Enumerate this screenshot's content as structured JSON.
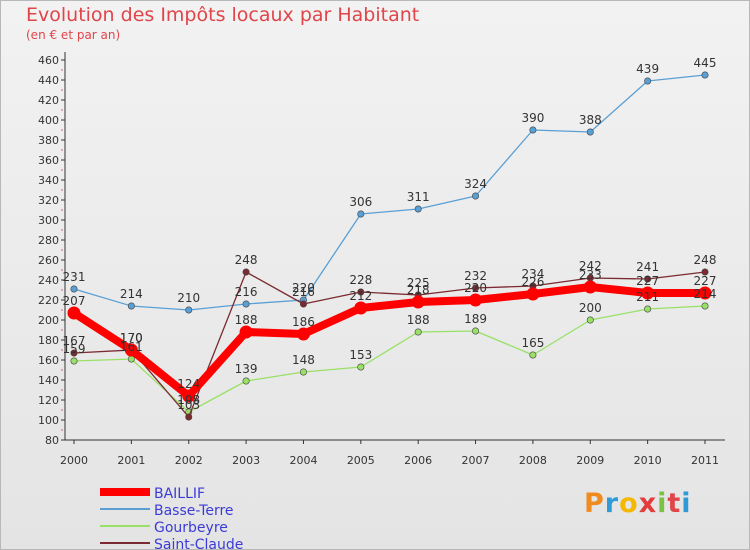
{
  "header": {
    "title": "Evolution des Impôts locaux par Habitant",
    "subtitle": "(en € et par an)"
  },
  "logo": {
    "letters": [
      "P",
      "r",
      "o",
      "x",
      "i",
      "t",
      "i"
    ]
  },
  "colors": {
    "BAILLIF": "#ff0000",
    "Basse-Terre": "#5a9fd4",
    "Gourbeyre": "#99e066",
    "Saint-Claude": "#7a2a30",
    "axis": "#333333",
    "legend_text": "#3b3bd9",
    "label_text": "#333333"
  },
  "chart_data": {
    "type": "line",
    "title": "Evolution des Impôts locaux par Habitant",
    "subtitle": "(en € et par an)",
    "xlabel": "",
    "ylabel": "",
    "ylim": [
      80,
      460
    ],
    "y_ticks": [
      80,
      100,
      120,
      140,
      160,
      180,
      200,
      220,
      240,
      260,
      280,
      300,
      320,
      340,
      360,
      380,
      400,
      420,
      440,
      460
    ],
    "grid": false,
    "legend_position": "bottom-left",
    "categories": [
      "2000",
      "2001",
      "2002",
      "2003",
      "2004",
      "2005",
      "2006",
      "2007",
      "2008",
      "2009",
      "2010",
      "2011"
    ],
    "series": [
      {
        "name": "Basse-Terre",
        "values": [
          231,
          214,
          210,
          216,
          220,
          306,
          311,
          324,
          390,
          388,
          439,
          445
        ],
        "labels": [
          "231",
          "214",
          "210",
          "216",
          "220",
          "306",
          "311",
          "324",
          "390",
          "388",
          "439",
          "445"
        ]
      },
      {
        "name": "Gourbeyre",
        "values": [
          159,
          161,
          108,
          139,
          148,
          153,
          188,
          189,
          165,
          200,
          211,
          214
        ],
        "labels": [
          "159",
          "161",
          "108",
          "139",
          "148",
          "153",
          "188",
          "189",
          "165",
          "200",
          "211",
          "214"
        ]
      },
      {
        "name": "Saint-Claude",
        "values": [
          167,
          170,
          103,
          248,
          216,
          228,
          225,
          232,
          234,
          242,
          241,
          248
        ],
        "labels": [
          "167",
          "170",
          "103",
          "248",
          "216",
          "228",
          "225",
          "232",
          "234",
          "242",
          "241",
          "248"
        ]
      },
      {
        "name": "BAILLIF",
        "values": [
          207,
          170,
          124,
          188,
          186,
          212,
          218,
          220,
          226,
          233,
          227,
          227
        ],
        "labels": [
          "207",
          "170",
          "124",
          "188",
          "186",
          "212",
          "218",
          "220",
          "226",
          "233",
          "227",
          "227"
        ]
      }
    ],
    "legend": [
      "BAILLIF",
      "Basse-Terre",
      "Gourbeyre",
      "Saint-Claude"
    ]
  }
}
